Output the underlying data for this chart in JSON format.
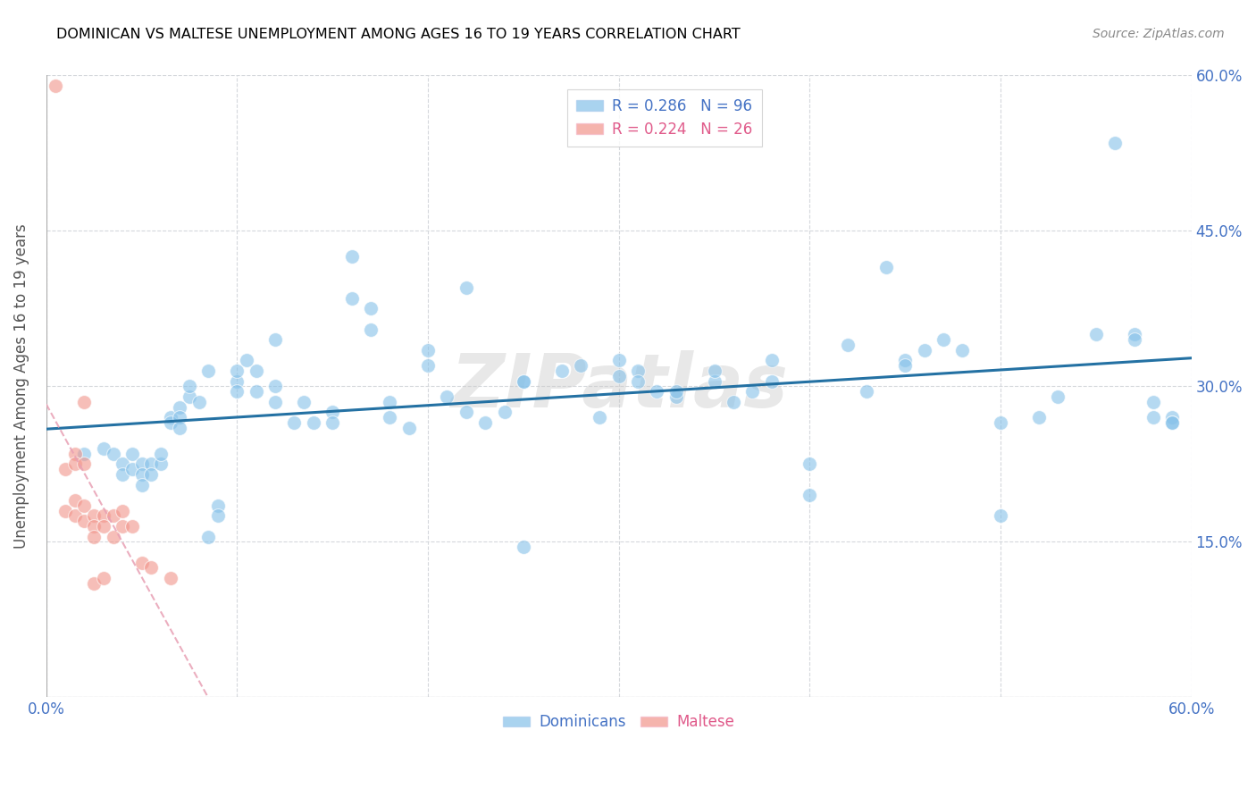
{
  "title": "DOMINICAN VS MALTESE UNEMPLOYMENT AMONG AGES 16 TO 19 YEARS CORRELATION CHART",
  "source": "Source: ZipAtlas.com",
  "ylabel": "Unemployment Among Ages 16 to 19 years",
  "xlim": [
    0.0,
    0.6
  ],
  "ylim": [
    0.0,
    0.6
  ],
  "xticks": [
    0.0,
    0.1,
    0.2,
    0.3,
    0.4,
    0.5,
    0.6
  ],
  "xticklabels": [
    "0.0%",
    "",
    "",
    "",
    "",
    "",
    "60.0%"
  ],
  "yticks": [
    0.0,
    0.15,
    0.3,
    0.45,
    0.6
  ],
  "right_yticklabels": [
    "",
    "15.0%",
    "30.0%",
    "45.0%",
    "60.0%"
  ],
  "dominican_color": "#85c1e9",
  "maltese_color": "#f1948a",
  "dominican_line_color": "#2471a3",
  "maltese_line_color": "#e8a0b4",
  "legend_dominican_R": "0.286",
  "legend_dominican_N": "96",
  "legend_maltese_R": "0.224",
  "legend_maltese_N": "26",
  "background_color": "#ffffff",
  "grid_color": "#d5d8dc",
  "watermark": "ZIPatlas",
  "dominican_x": [
    0.02,
    0.03,
    0.035,
    0.04,
    0.04,
    0.045,
    0.045,
    0.05,
    0.05,
    0.05,
    0.055,
    0.055,
    0.06,
    0.06,
    0.065,
    0.065,
    0.07,
    0.07,
    0.07,
    0.075,
    0.075,
    0.08,
    0.085,
    0.09,
    0.09,
    0.1,
    0.1,
    0.105,
    0.11,
    0.12,
    0.12,
    0.13,
    0.135,
    0.14,
    0.15,
    0.15,
    0.16,
    0.16,
    0.17,
    0.17,
    0.18,
    0.18,
    0.19,
    0.2,
    0.2,
    0.21,
    0.22,
    0.22,
    0.23,
    0.24,
    0.25,
    0.25,
    0.25,
    0.27,
    0.28,
    0.29,
    0.3,
    0.3,
    0.31,
    0.31,
    0.32,
    0.33,
    0.33,
    0.35,
    0.35,
    0.36,
    0.37,
    0.38,
    0.38,
    0.4,
    0.4,
    0.42,
    0.43,
    0.44,
    0.45,
    0.45,
    0.46,
    0.47,
    0.48,
    0.5,
    0.5,
    0.52,
    0.53,
    0.55,
    0.56,
    0.57,
    0.58,
    0.57,
    0.58,
    0.59,
    0.59,
    0.59,
    0.085,
    0.1,
    0.11,
    0.12
  ],
  "dominican_y": [
    0.235,
    0.24,
    0.235,
    0.225,
    0.215,
    0.22,
    0.235,
    0.225,
    0.215,
    0.205,
    0.225,
    0.215,
    0.225,
    0.235,
    0.27,
    0.265,
    0.28,
    0.27,
    0.26,
    0.29,
    0.3,
    0.285,
    0.155,
    0.185,
    0.175,
    0.305,
    0.295,
    0.325,
    0.295,
    0.345,
    0.285,
    0.265,
    0.285,
    0.265,
    0.275,
    0.265,
    0.425,
    0.385,
    0.375,
    0.355,
    0.285,
    0.27,
    0.26,
    0.335,
    0.32,
    0.29,
    0.395,
    0.275,
    0.265,
    0.275,
    0.305,
    0.305,
    0.145,
    0.315,
    0.32,
    0.27,
    0.325,
    0.31,
    0.315,
    0.305,
    0.295,
    0.29,
    0.295,
    0.305,
    0.315,
    0.285,
    0.295,
    0.325,
    0.305,
    0.195,
    0.225,
    0.34,
    0.295,
    0.415,
    0.325,
    0.32,
    0.335,
    0.345,
    0.335,
    0.265,
    0.175,
    0.27,
    0.29,
    0.35,
    0.535,
    0.35,
    0.285,
    0.345,
    0.27,
    0.27,
    0.265,
    0.265,
    0.315,
    0.315,
    0.315,
    0.3
  ],
  "maltese_x": [
    0.005,
    0.01,
    0.01,
    0.015,
    0.015,
    0.015,
    0.015,
    0.02,
    0.02,
    0.02,
    0.02,
    0.025,
    0.025,
    0.025,
    0.025,
    0.03,
    0.03,
    0.03,
    0.035,
    0.035,
    0.04,
    0.04,
    0.045,
    0.05,
    0.055,
    0.065
  ],
  "maltese_y": [
    0.59,
    0.22,
    0.18,
    0.235,
    0.225,
    0.19,
    0.175,
    0.285,
    0.225,
    0.185,
    0.17,
    0.175,
    0.165,
    0.155,
    0.11,
    0.175,
    0.165,
    0.115,
    0.175,
    0.155,
    0.18,
    0.165,
    0.165,
    0.13,
    0.125,
    0.115
  ]
}
